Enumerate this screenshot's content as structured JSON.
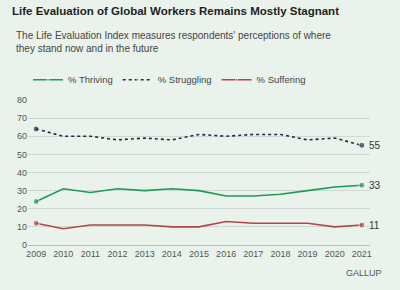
{
  "chart_data": {
    "type": "line",
    "title": "Life Evaluation of Global Workers Remains Mostly Stagnant",
    "subtitle": "The Life Evaluation Index measures respondents' perceptions of where they stand now and in the future",
    "source": "GALLUP",
    "x": [
      2009,
      2010,
      2011,
      2012,
      2013,
      2014,
      2015,
      2016,
      2017,
      2018,
      2019,
      2020,
      2021
    ],
    "series": [
      {
        "name": "% Thriving",
        "color": "#1f9a58",
        "line_style": "solid",
        "values": [
          24,
          31,
          29,
          31,
          30,
          31,
          30,
          27,
          27,
          28,
          30,
          32,
          33
        ]
      },
      {
        "name": "% Struggling",
        "color": "#1c2b4b",
        "line_style": "dotted",
        "values": [
          64,
          60,
          60,
          58,
          59,
          58,
          61,
          60,
          61,
          61,
          58,
          59,
          55
        ]
      },
      {
        "name": "% Suffering",
        "color": "#b0474b",
        "line_style": "solid",
        "values": [
          12,
          9,
          11,
          11,
          11,
          10,
          10,
          13,
          12,
          12,
          12,
          10,
          11
        ]
      }
    ],
    "annotations": [
      {
        "text": "55",
        "x": 2021,
        "y": 55
      },
      {
        "text": "33",
        "x": 2021,
        "y": 33
      },
      {
        "text": "11",
        "x": 2021,
        "y": 11
      }
    ],
    "xlim": [
      2008.7,
      2021.3
    ],
    "xticks": [
      2009,
      2010,
      2011,
      2012,
      2013,
      2014,
      2015,
      2016,
      2017,
      2018,
      2019,
      2020,
      2021
    ],
    "ylim": [
      0,
      80
    ],
    "yticks": [
      0,
      10,
      20,
      30,
      40,
      50,
      60,
      70,
      80
    ],
    "grid": true,
    "legend": "top-left"
  }
}
